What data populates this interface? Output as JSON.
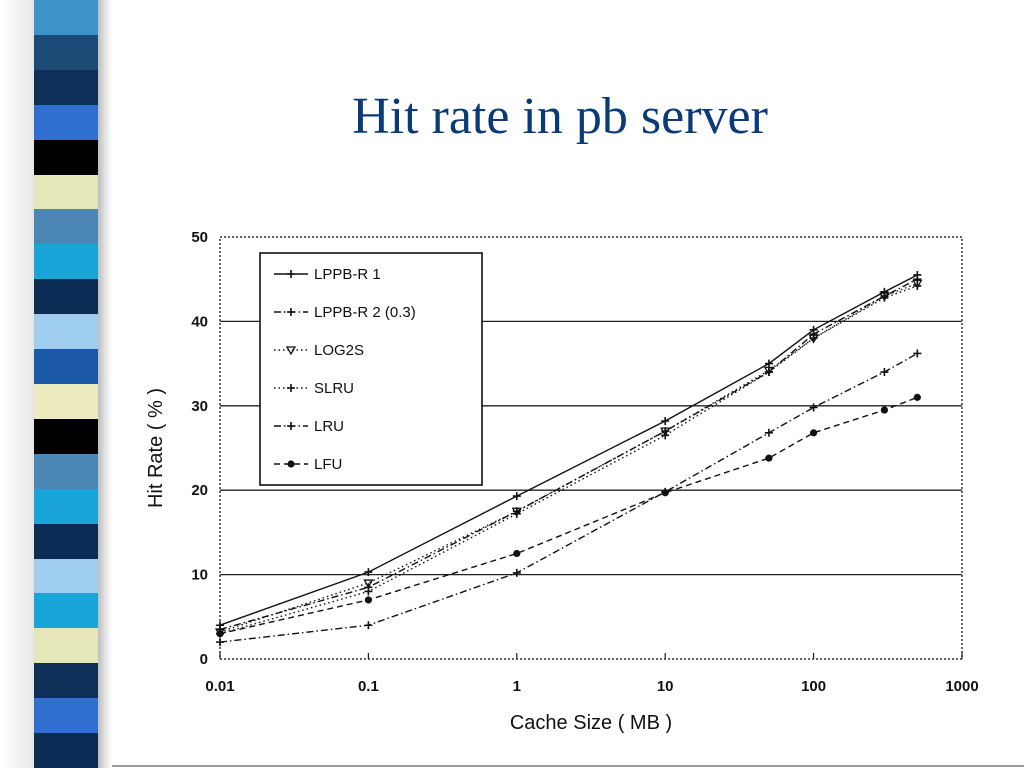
{
  "slide": {
    "title": "Hit rate in pb server",
    "stripe_colors": [
      "#3b93c7",
      "#1d4b78",
      "#0e2f57",
      "#2f6fd0",
      "#000000",
      "#e6e7b9",
      "#4b86b5",
      "#1aa5d8",
      "#0b2d55",
      "#9fcdf0",
      "#1c59a6",
      "#ecebbd",
      "#000000",
      "#4b86b5",
      "#1aa5d8",
      "#0b2d55",
      "#9fcdf0",
      "#1aa5d8",
      "#e6e7b9",
      "#0e2f57",
      "#2f6fd0",
      "#0b2d55"
    ]
  },
  "chart_data": {
    "type": "line",
    "xscale": "log",
    "xlabel": "Cache Size ( MB )",
    "ylabel": "Hit Rate ( % )",
    "xlim": [
      0.01,
      1000
    ],
    "ylim": [
      0,
      50
    ],
    "x_ticks": [
      "0.01",
      "0.1",
      "1",
      "10",
      "100",
      "1000"
    ],
    "y_ticks": [
      "0",
      "10",
      "20",
      "30",
      "40",
      "50"
    ],
    "grid": "horizontal",
    "legend_position": "top-left",
    "series": [
      {
        "name": "LPPB-R 1",
        "style": "solid",
        "marker": "plus",
        "x": [
          0.01,
          0.1,
          1,
          10,
          50,
          100,
          300,
          500
        ],
        "y": [
          4,
          10.3,
          19.3,
          28.2,
          35,
          39,
          43.5,
          45.5
        ]
      },
      {
        "name": "LPPB-R 2 (0.3)",
        "style": "dash-dot",
        "marker": "plus",
        "x": [
          0.01,
          0.1,
          1,
          10,
          50,
          100,
          300,
          500
        ],
        "y": [
          3.5,
          8.5,
          17.5,
          27,
          34,
          38.5,
          43,
          45
        ]
      },
      {
        "name": "LOG2S",
        "style": "dotted",
        "marker": "triangle",
        "x": [
          0.01,
          0.1,
          1,
          10,
          50,
          100,
          300,
          500
        ],
        "y": [
          3.2,
          9,
          17.5,
          27,
          34.2,
          38,
          43,
          44.5
        ]
      },
      {
        "name": "SLRU",
        "style": "dotted",
        "marker": "plus",
        "x": [
          0.01,
          0.1,
          1,
          10,
          50,
          100,
          300,
          500
        ],
        "y": [
          3,
          8,
          17.2,
          26.5,
          34,
          38,
          42.8,
          44.2
        ]
      },
      {
        "name": "LRU",
        "style": "dash-dot",
        "marker": "plus",
        "x": [
          0.01,
          0.1,
          1,
          10,
          50,
          100,
          300,
          500
        ],
        "y": [
          2,
          4,
          10.2,
          19.8,
          26.8,
          29.8,
          34,
          36.2
        ]
      },
      {
        "name": "LFU",
        "style": "dashed",
        "marker": "dot",
        "x": [
          0.01,
          0.1,
          1,
          10,
          50,
          100,
          300,
          500
        ],
        "y": [
          3,
          7,
          12.5,
          19.7,
          23.8,
          26.8,
          29.5,
          31
        ]
      }
    ]
  }
}
